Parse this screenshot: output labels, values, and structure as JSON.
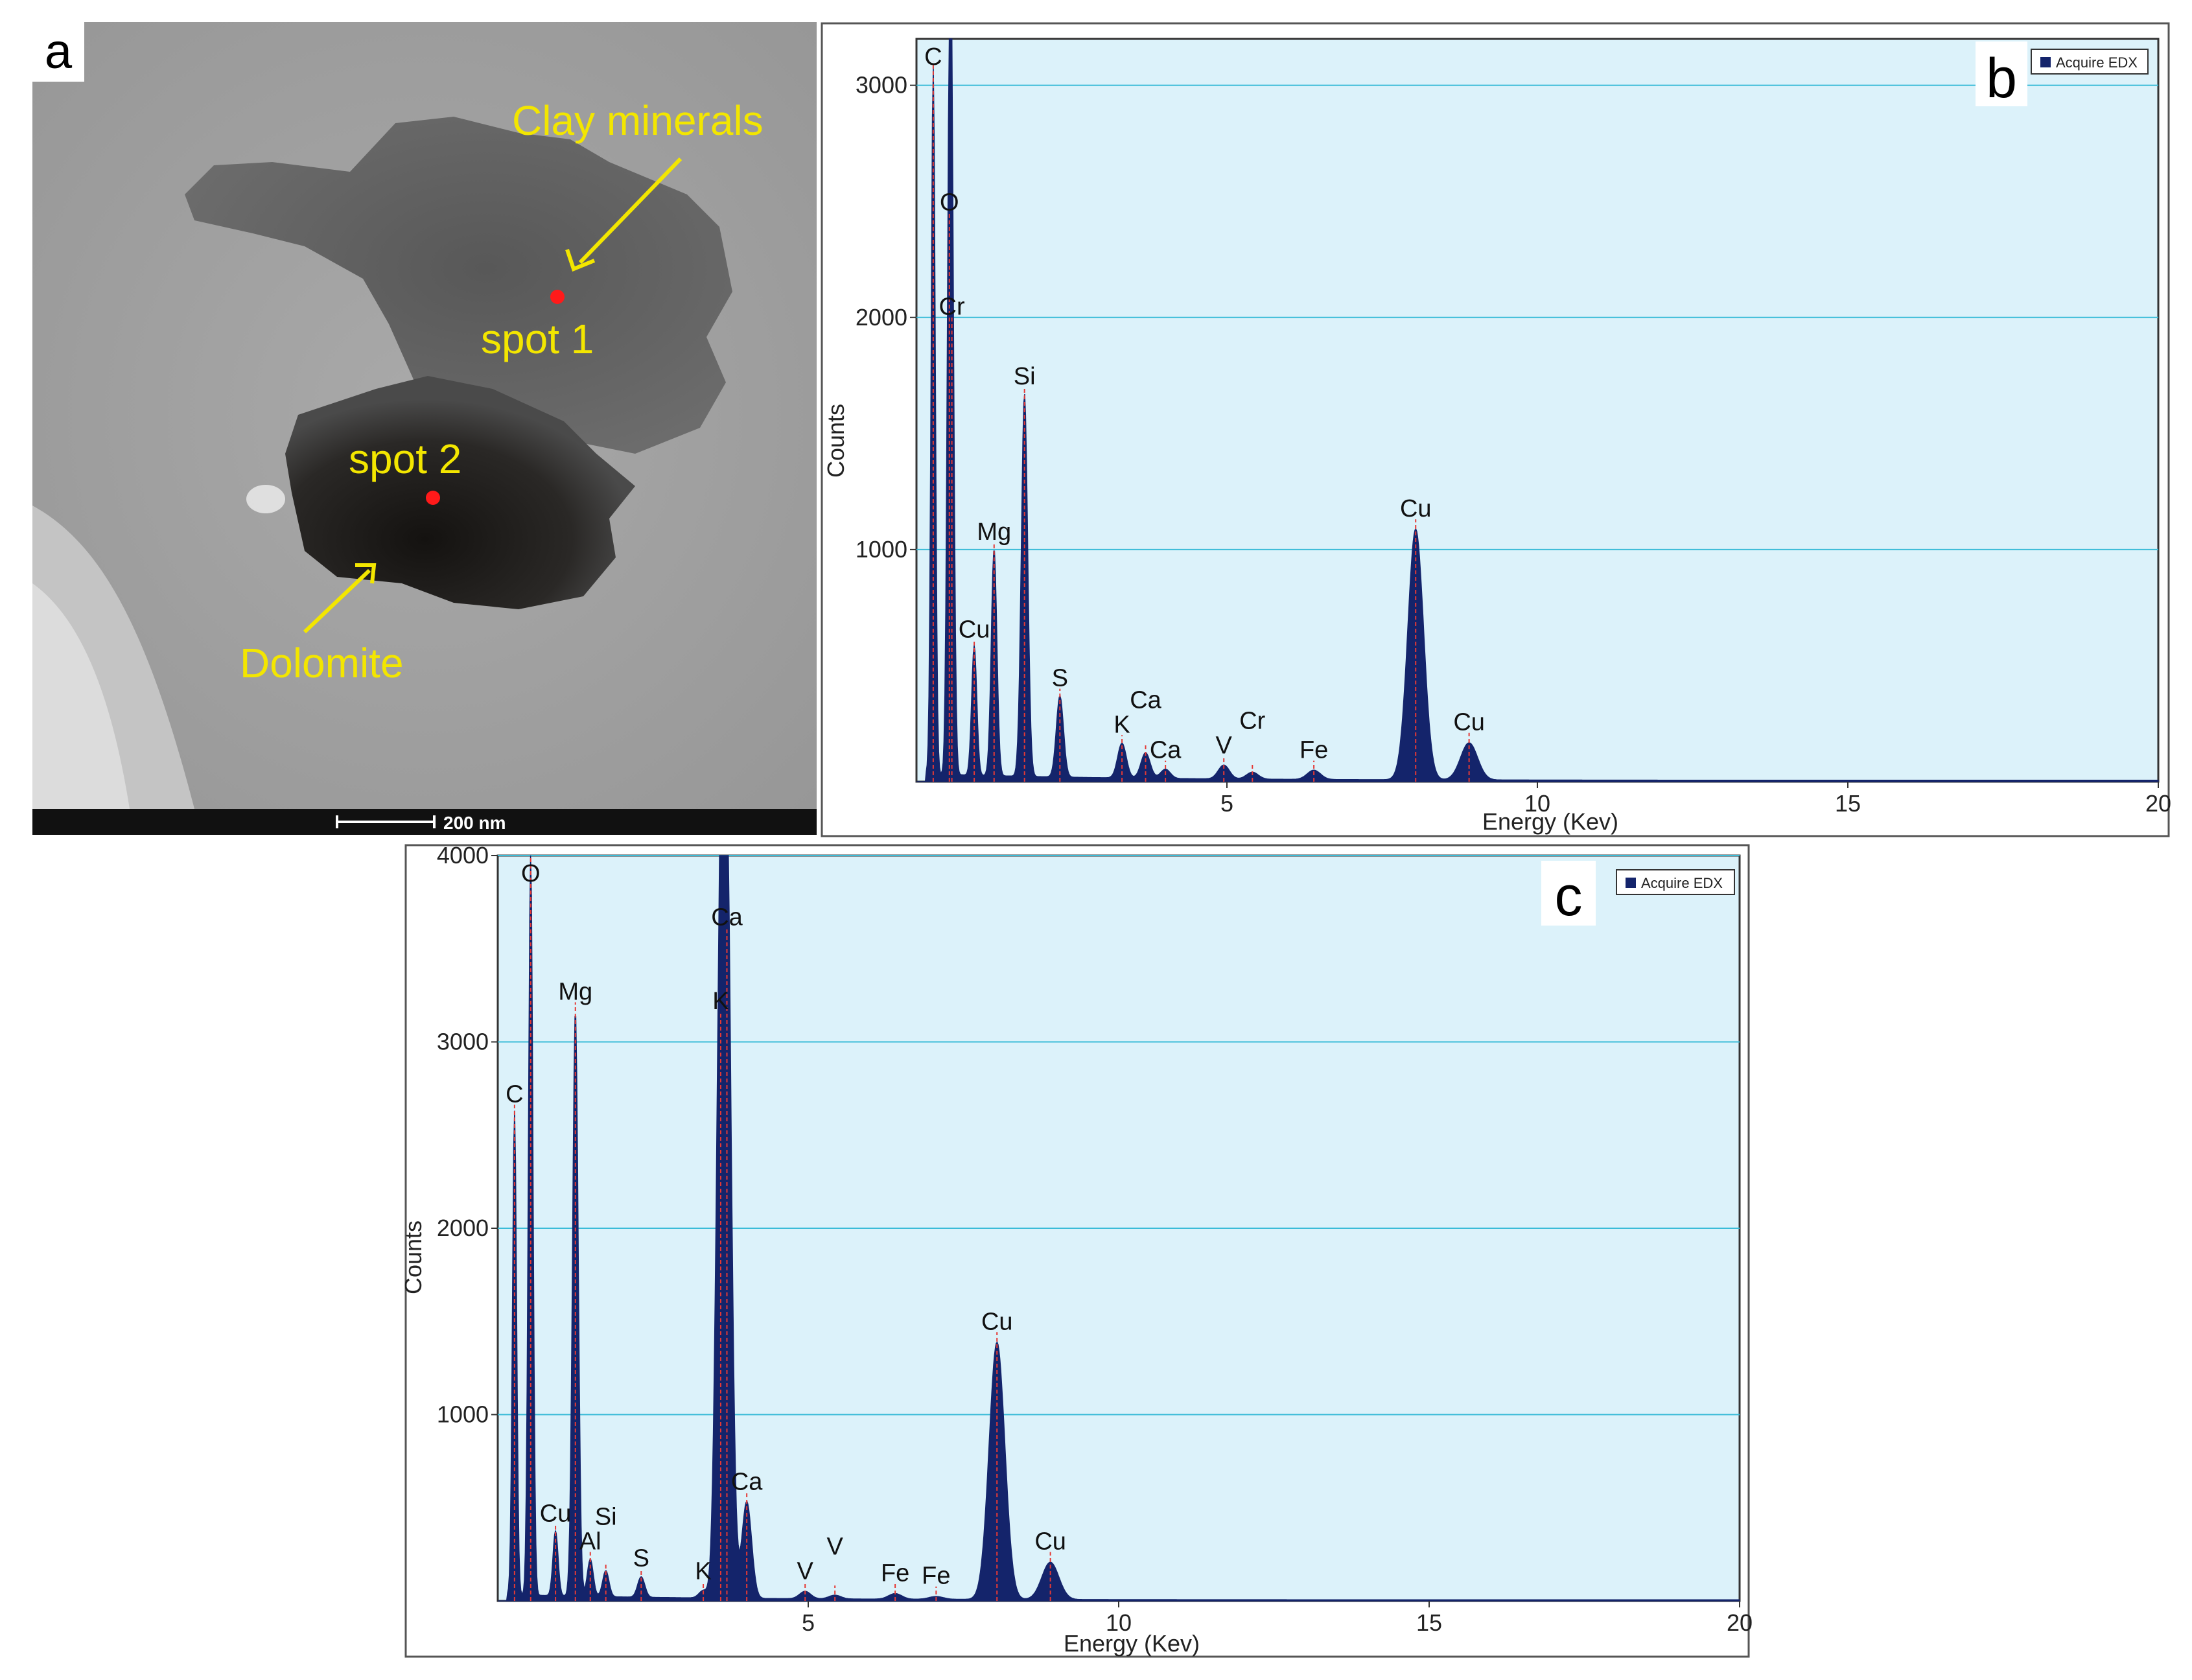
{
  "panel_a": {
    "letter": "a",
    "labels": {
      "clay": "Clay minerals",
      "spot1": "spot 1",
      "spot2": "spot 2",
      "dolomite": "Dolomite"
    },
    "scale_bar": "200 nm"
  },
  "chart_data": [
    {
      "type": "area",
      "panel": "b",
      "xlabel": "Energy (Kev)",
      "ylabel": "Counts",
      "legend": "Acquire EDX",
      "legend_position": "top-right",
      "xlim": [
        0,
        20
      ],
      "ylim": [
        0,
        3200
      ],
      "x_ticks": [
        5,
        10,
        15,
        20
      ],
      "y_ticks": [
        1000,
        2000,
        3000
      ],
      "grid": "horizontal",
      "colors": {
        "fill": "#14246b",
        "plot_bg": "#dcf2fa",
        "grid": "#3bbcd8",
        "marker": "#e53935"
      },
      "peaks": [
        {
          "label": "C",
          "x": 0.27,
          "y": 3050
        },
        {
          "label": "O",
          "x": 0.53,
          "y": 2400
        },
        {
          "label": "Cr",
          "x": 0.57,
          "y": 1950
        },
        {
          "label": "Cu",
          "x": 0.93,
          "y": 560
        },
        {
          "label": "Mg",
          "x": 1.25,
          "y": 980
        },
        {
          "label": "Si",
          "x": 1.74,
          "y": 1650
        },
        {
          "label": "S",
          "x": 2.31,
          "y": 350
        },
        {
          "label": "K",
          "x": 3.31,
          "y": 150
        },
        {
          "label": "Ca",
          "x": 3.69,
          "y": 110
        },
        {
          "label": "Ca",
          "x": 4.01,
          "y": 40
        },
        {
          "label": "V",
          "x": 4.95,
          "y": 60
        },
        {
          "label": "Cr",
          "x": 5.41,
          "y": 30
        },
        {
          "label": "Fe",
          "x": 6.4,
          "y": 40
        },
        {
          "label": "Cu",
          "x": 8.04,
          "y": 1080
        },
        {
          "label": "Cu",
          "x": 8.9,
          "y": 160
        }
      ]
    },
    {
      "type": "area",
      "panel": "c",
      "xlabel": "Energy (Kev)",
      "ylabel": "Counts",
      "legend": "Acquire EDX",
      "legend_position": "top-right",
      "xlim": [
        0,
        20
      ],
      "ylim": [
        0,
        4000
      ],
      "x_ticks": [
        5,
        10,
        15,
        20
      ],
      "y_ticks": [
        1000,
        2000,
        3000,
        4000
      ],
      "grid": "horizontal",
      "colors": {
        "fill": "#14246b",
        "plot_bg": "#dcf2fa",
        "grid": "#3bbcd8",
        "marker": "#e53935"
      },
      "peaks": [
        {
          "label": "C",
          "x": 0.27,
          "y": 2600
        },
        {
          "label": "O",
          "x": 0.53,
          "y": 4000
        },
        {
          "label": "Cu",
          "x": 0.93,
          "y": 350
        },
        {
          "label": "Mg",
          "x": 1.25,
          "y": 3150
        },
        {
          "label": "Al",
          "x": 1.49,
          "y": 200
        },
        {
          "label": "Si",
          "x": 1.74,
          "y": 140
        },
        {
          "label": "S",
          "x": 2.31,
          "y": 110
        },
        {
          "label": "K",
          "x": 3.31,
          "y": 40
        },
        {
          "label": "K",
          "x": 3.59,
          "y": 3100
        },
        {
          "label": "Ca",
          "x": 3.69,
          "y": 3550
        },
        {
          "label": "Ca",
          "x": 4.01,
          "y": 520
        },
        {
          "label": "V",
          "x": 4.95,
          "y": 40
        },
        {
          "label": "V",
          "x": 5.43,
          "y": 20
        },
        {
          "label": "Fe",
          "x": 6.4,
          "y": 30
        },
        {
          "label": "Fe",
          "x": 7.06,
          "y": 15
        },
        {
          "label": "Cu",
          "x": 8.04,
          "y": 1380
        },
        {
          "label": "Cu",
          "x": 8.9,
          "y": 200
        }
      ]
    }
  ]
}
